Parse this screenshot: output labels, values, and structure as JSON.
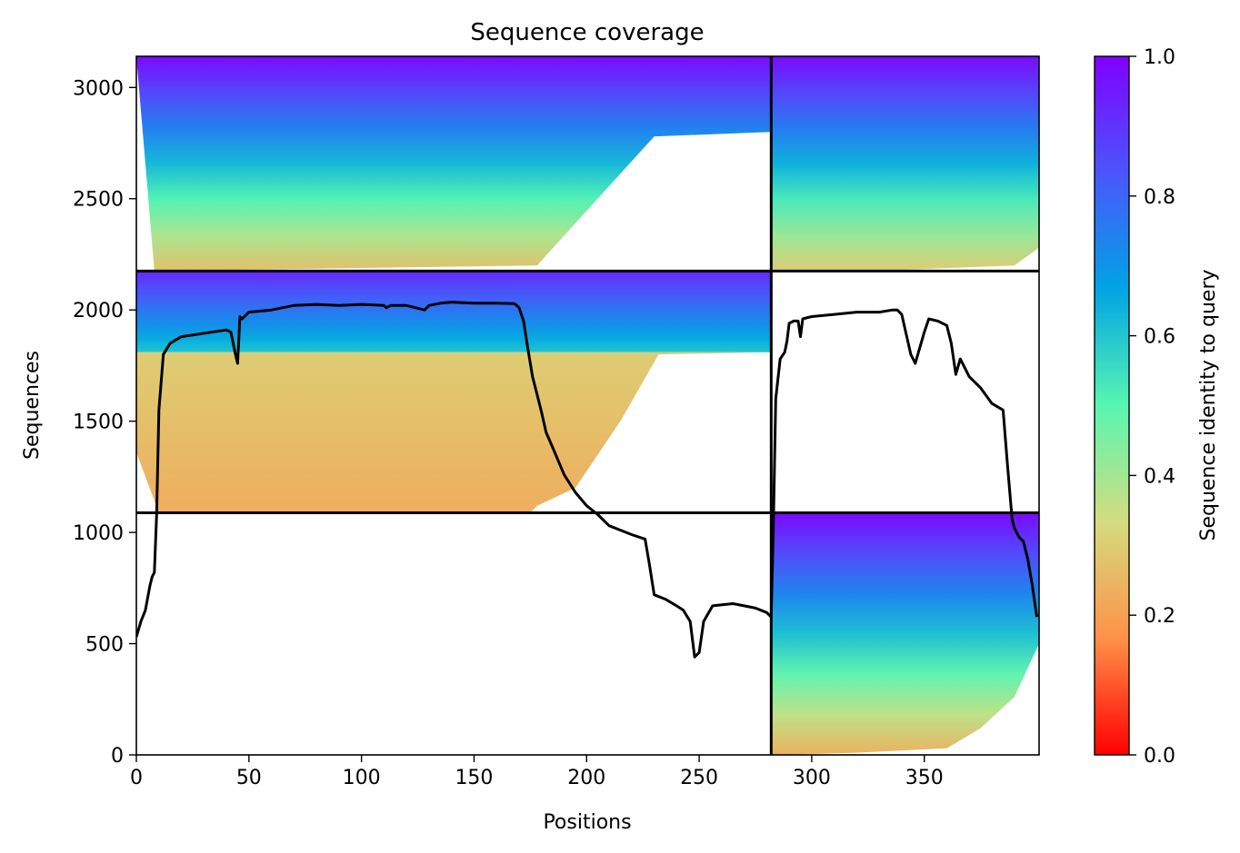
{
  "chart_data": {
    "type": "heatmap",
    "title": "Sequence coverage",
    "xlabel": "Positions",
    "ylabel": "Sequences",
    "colorbar_label": "Sequence identity to query",
    "xlim": [
      0,
      401
    ],
    "ylim": [
      0,
      3140
    ],
    "x_ticks": [
      0,
      50,
      100,
      150,
      200,
      250,
      300,
      350
    ],
    "y_ticks": [
      0,
      500,
      1000,
      1500,
      2000,
      2500,
      3000
    ],
    "colorbar_ticks": [
      "0.0",
      "0.2",
      "0.4",
      "0.6",
      "0.8",
      "1.0"
    ],
    "colormap": "rainbow_r",
    "colors": [
      "#ff0000",
      "#ff9148",
      "#d4dc7f",
      "#58f6b2",
      "#00a4e4",
      "#4a56fb",
      "#8000ff"
    ],
    "block_dividers": {
      "x": [
        282
      ],
      "y": [
        1088,
        2175
      ]
    },
    "blocks": [
      {
        "x_range": [
          0,
          282
        ],
        "y_range": [
          2175,
          3140
        ],
        "identity_bottom": 0.27,
        "identity_top": 0.98,
        "coverage": [
          [
            0,
            3140
          ],
          [
            8,
            2175
          ],
          [
            178,
            2200
          ],
          [
            230,
            2780
          ],
          [
            282,
            2800
          ]
        ]
      },
      {
        "x_range": [
          282,
          401
        ],
        "y_range": [
          2175,
          3140
        ],
        "identity_bottom": 0.3,
        "identity_top": 0.98,
        "coverage": [
          [
            282,
            2175
          ],
          [
            340,
            2180
          ],
          [
            390,
            2200
          ],
          [
            401,
            2280
          ]
        ]
      },
      {
        "x_range": [
          0,
          282
        ],
        "y_range": [
          1810,
          2175
        ],
        "identity_bottom": 0.6,
        "identity_top": 0.92,
        "coverage": [
          [
            0,
            1810
          ],
          [
            282,
            1810
          ]
        ]
      },
      {
        "x_range": [
          0,
          282
        ],
        "y_range": [
          1088,
          1810
        ],
        "identity_bottom": 0.23,
        "identity_top": 0.3,
        "coverage": [
          [
            0,
            1360
          ],
          [
            10,
            1088
          ],
          [
            175,
            1088
          ],
          [
            178,
            1120
          ],
          [
            195,
            1200
          ],
          [
            215,
            1500
          ],
          [
            232,
            1800
          ],
          [
            282,
            1810
          ]
        ]
      },
      {
        "x_range": [
          282,
          401
        ],
        "y_range": [
          0,
          1088
        ],
        "identity_bottom": 0.24,
        "identity_top": 0.98,
        "coverage": [
          [
            282,
            0
          ],
          [
            320,
            10
          ],
          [
            360,
            30
          ],
          [
            375,
            120
          ],
          [
            390,
            260
          ],
          [
            401,
            500
          ]
        ]
      }
    ],
    "series": [
      {
        "x": [
          0,
          2,
          4,
          6,
          7,
          8,
          9,
          10,
          12,
          15,
          20,
          30,
          40,
          42,
          44,
          45,
          46,
          47,
          50,
          60,
          65,
          70,
          80,
          90,
          100,
          110,
          111,
          113,
          120,
          128,
          130,
          135,
          140,
          150,
          160,
          168,
          170,
          172,
          174,
          176,
          178,
          180,
          182,
          185,
          190,
          195,
          200,
          205,
          210,
          220,
          226,
          228,
          230,
          235,
          240,
          243,
          246,
          248,
          250,
          252,
          256,
          265,
          270,
          275,
          280,
          282,
          283,
          284,
          286,
          288,
          289,
          290,
          292,
          294,
          295,
          296,
          300,
          310,
          320,
          330,
          336,
          338,
          340,
          344,
          346,
          350,
          352,
          356,
          360,
          362,
          364,
          366,
          370,
          375,
          380,
          385,
          387,
          389,
          390,
          392,
          394,
          396,
          398,
          400
        ],
        "y": [
          530,
          600,
          650,
          760,
          800,
          820,
          1080,
          1550,
          1800,
          1850,
          1880,
          1895,
          1910,
          1900,
          1800,
          1760,
          1970,
          1960,
          1990,
          2000,
          2010,
          2020,
          2025,
          2020,
          2025,
          2020,
          2010,
          2020,
          2020,
          2000,
          2020,
          2030,
          2035,
          2030,
          2030,
          2028,
          2010,
          1950,
          1820,
          1700,
          1620,
          1540,
          1450,
          1380,
          1260,
          1180,
          1120,
          1080,
          1030,
          990,
          970,
          850,
          720,
          700,
          670,
          650,
          600,
          440,
          460,
          600,
          670,
          680,
          670,
          660,
          640,
          620,
          1050,
          1600,
          1780,
          1810,
          1860,
          1940,
          1950,
          1950,
          1880,
          1960,
          1970,
          1980,
          1990,
          1990,
          2000,
          2000,
          1980,
          1800,
          1760,
          1900,
          1960,
          1950,
          1930,
          1850,
          1710,
          1780,
          1700,
          1650,
          1580,
          1550,
          1300,
          1060,
          1020,
          980,
          960,
          880,
          760,
          620
        ]
      }
    ]
  }
}
